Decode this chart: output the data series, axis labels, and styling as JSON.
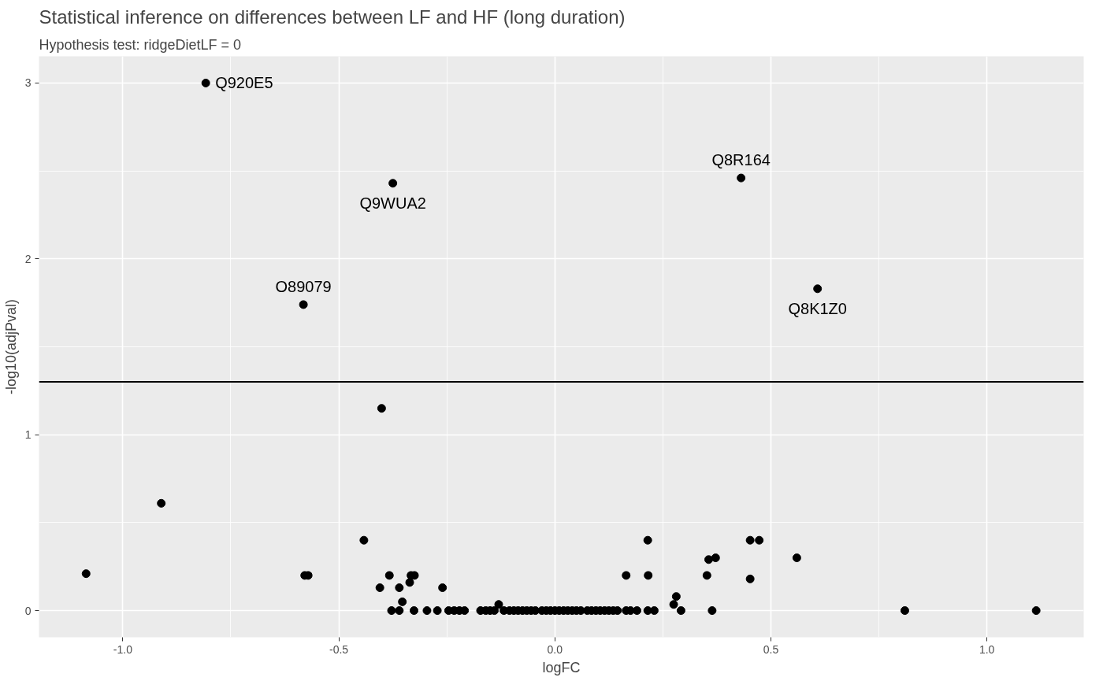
{
  "chart_data": {
    "type": "scatter",
    "title": "Statistical inference on differences between LF and HF (long duration)",
    "subtitle": "Hypothesis test: ridgeDietLF = 0",
    "xlabel": "logFC",
    "ylabel": "-log10(adjPval)",
    "x": [
      -0.808,
      -0.375,
      0.431,
      0.608,
      -0.582,
      -0.401,
      -0.911,
      -1.085,
      -0.579,
      -0.571,
      -0.442,
      -0.383,
      -0.405,
      -0.36,
      -0.336,
      -0.333,
      -0.325,
      -0.353,
      -0.26,
      -0.13,
      0.165,
      0.215,
      0.216,
      0.281,
      0.275,
      0.292,
      0.352,
      0.356,
      0.372,
      0.364,
      0.452,
      0.473,
      0.452,
      0.56,
      0.81,
      1.114,
      -0.378,
      -0.36,
      -0.326,
      -0.296,
      -0.272,
      -0.246,
      -0.233,
      -0.221,
      -0.209,
      -0.172,
      -0.16,
      -0.15,
      -0.14,
      -0.118,
      -0.105,
      -0.095,
      -0.085,
      -0.075,
      -0.065,
      -0.055,
      -0.045,
      -0.03,
      -0.02,
      -0.01,
      0.0,
      0.01,
      0.02,
      0.03,
      0.04,
      0.05,
      0.06,
      0.075,
      0.085,
      0.095,
      0.105,
      0.115,
      0.125,
      0.135,
      0.145,
      0.165,
      0.175,
      0.19,
      0.215,
      0.23
    ],
    "values": [
      3.0,
      2.43,
      2.46,
      1.83,
      1.74,
      1.15,
      0.61,
      0.21,
      0.2,
      0.2,
      0.4,
      0.2,
      0.13,
      0.13,
      0.16,
      0.2,
      0.2,
      0.05,
      0.13,
      0.035,
      0.2,
      0.4,
      0.2,
      0.08,
      0.035,
      0.0,
      0.2,
      0.29,
      0.3,
      0.0,
      0.4,
      0.4,
      0.18,
      0.3,
      0.0,
      0.0,
      0.0,
      0.0,
      0.0,
      0.0,
      0.0,
      0.0,
      0.0,
      0.0,
      0.0,
      0.0,
      0.0,
      0.0,
      0.0,
      0.0,
      0.0,
      0.0,
      0.0,
      0.0,
      0.0,
      0.0,
      0.0,
      0.0,
      0.0,
      0.0,
      0.0,
      0.0,
      0.0,
      0.0,
      0.0,
      0.0,
      0.0,
      0.0,
      0.0,
      0.0,
      0.0,
      0.0,
      0.0,
      0.0,
      0.0,
      0.0,
      0.0,
      0.0,
      0.0,
      0.0
    ],
    "color": "#000000",
    "marker": "circle",
    "xlim": [
      -1.194,
      1.224
    ],
    "ylim": [
      -0.152,
      3.152
    ],
    "xticks": [
      {
        "value": -1.0,
        "label": "-1.0"
      },
      {
        "value": -0.5,
        "label": "-0.5"
      },
      {
        "value": 0.0,
        "label": "0.0"
      },
      {
        "value": 0.5,
        "label": "0.5"
      },
      {
        "value": 1.0,
        "label": "1.0"
      }
    ],
    "yticks": [
      0,
      1,
      2,
      3
    ],
    "grid": true,
    "ref_lines": [
      {
        "axis": "y",
        "value": 1.301,
        "color": "#000000"
      }
    ],
    "annotations": [
      {
        "text": "Q920E5",
        "x": -0.808,
        "y": 3.0
      },
      {
        "text": "Q9WUA2",
        "x": -0.375,
        "y": 2.43
      },
      {
        "text": "Q8R164",
        "x": 0.431,
        "y": 2.46
      },
      {
        "text": "Q8K1Z0",
        "x": 0.608,
        "y": 1.83
      },
      {
        "text": "O89079",
        "x": -0.582,
        "y": 1.74
      }
    ]
  }
}
